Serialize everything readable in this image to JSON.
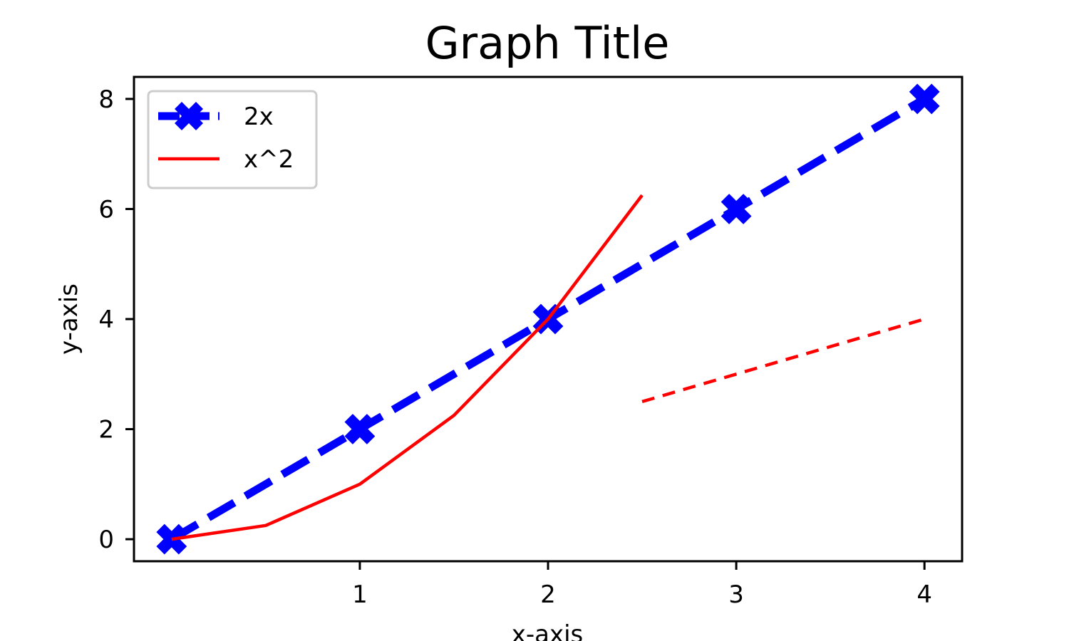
{
  "chart_data": {
    "type": "line",
    "title": "Graph Title",
    "xlabel": "x-axis",
    "ylabel": "y-axis",
    "xlim": [
      -0.2,
      4.2
    ],
    "ylim": [
      -0.4,
      8.4
    ],
    "x_ticks": [
      1,
      2,
      3,
      4
    ],
    "x_tick_labels": [
      "1",
      "2",
      "3",
      "4"
    ],
    "y_ticks": [
      0,
      2,
      4,
      6,
      8
    ],
    "y_tick_labels": [
      "0",
      "2",
      "4",
      "6",
      "8"
    ],
    "grid": false,
    "legend_position": "top-left",
    "series": [
      {
        "name": "2x",
        "color": "#0000ff",
        "style": "dashed",
        "marker": "X",
        "x": [
          0,
          1,
          2,
          3,
          4
        ],
        "y": [
          0,
          2,
          4,
          6,
          8
        ],
        "in_legend": true
      },
      {
        "name": "x^2",
        "color": "#ff0000",
        "style": "solid",
        "marker": "none",
        "x": [
          0,
          0.5,
          1,
          1.5,
          2,
          2.5
        ],
        "y": [
          0,
          0.25,
          1,
          2.25,
          4,
          6.25
        ],
        "in_legend": true
      },
      {
        "color": "#ff0000",
        "style": "dashed",
        "marker": "none",
        "x": [
          2.5,
          3,
          4
        ],
        "y": [
          2.5,
          3,
          4
        ],
        "in_legend": false
      }
    ]
  }
}
